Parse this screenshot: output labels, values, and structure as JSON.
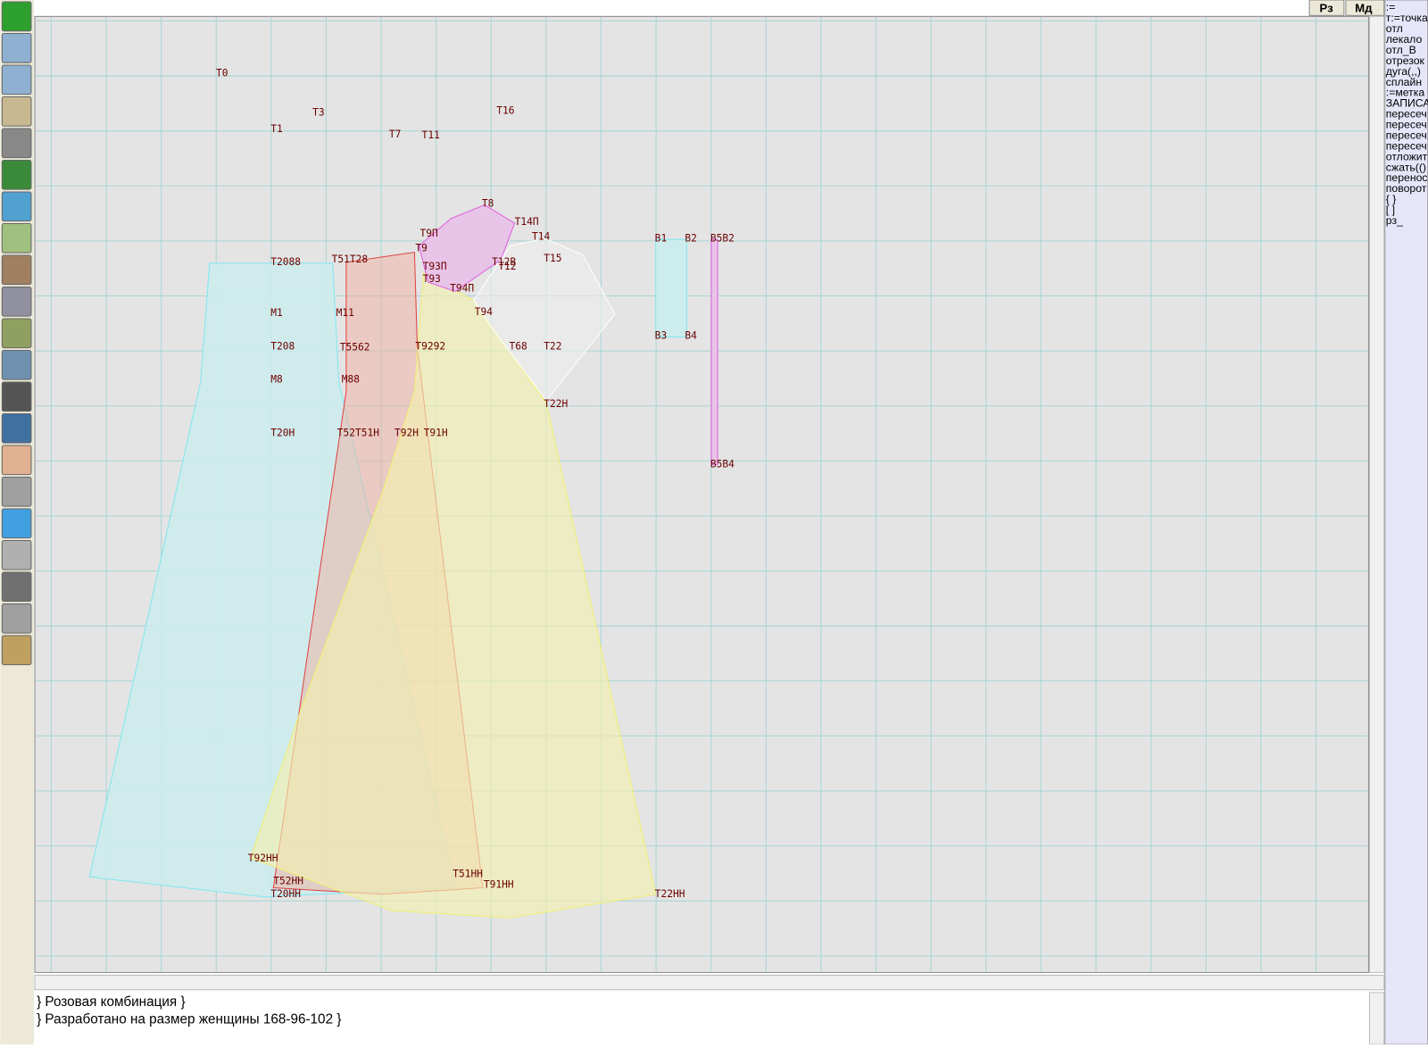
{
  "buttons": [
    "Рз",
    "Мд"
  ],
  "point_labels": [
    "Т0",
    "Т3",
    "Т1",
    "Т7",
    "Т11",
    "Т16",
    "Т8",
    "Т14П",
    "Т9П",
    "Т14",
    "Т9",
    "Т15",
    "Т2088",
    "Т51Т28",
    "Т12В",
    "Т12",
    "Т93П",
    "Т93",
    "Т94П",
    "Т94",
    "М1",
    "М11",
    "Т208",
    "Т5562",
    "Т9292",
    "Т68",
    "Т22",
    "М8",
    "М88",
    "Т22Н",
    "Т20Н",
    "Т52Т51Н",
    "Т92Н",
    "Т91Н",
    "Т92НН",
    "Т51НН",
    "Т52НН",
    "Т91НН",
    "Т20НН",
    "Т22НН",
    "В1",
    "В2",
    "В5В2",
    "В3",
    "В4",
    "В5В4"
  ],
  "side_list": [
    ":=",
    "т:=точка",
    "отл",
    "лекало",
    "отл_В",
    "отрезок",
    "дуга(,,)",
    "сплайн",
    ":=метка",
    "ЗАПИСА",
    "пересеч",
    "пересеч",
    "пересеч",
    "пересеч",
    "отложит",
    "сжать(()",
    "перенос",
    "поворот",
    "{ }",
    "[ ]",
    "рз_"
  ],
  "bottom_text": [
    "} Розовая комбинация  }",
    "} Разработано на размер женщины 168-96-102 }"
  ]
}
